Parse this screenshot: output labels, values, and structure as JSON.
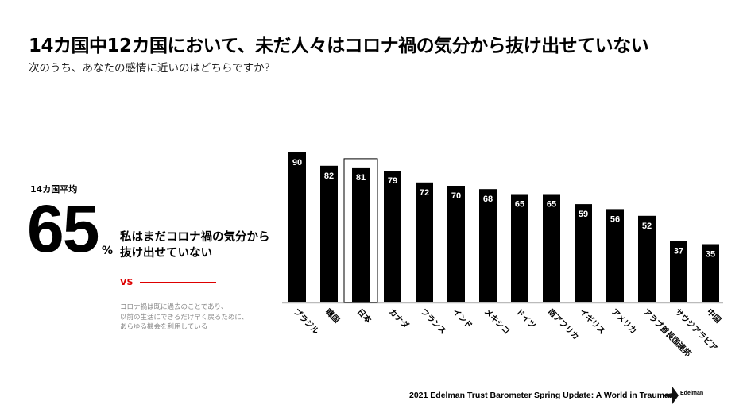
{
  "header": {
    "title": "14カ国中12カ国において、未だ人々はコロナ禍の気分から抜け出せていない",
    "subtitle": "次のうち、あなたの感情に近いのはどちらですか？"
  },
  "summary": {
    "label": "14カ国平均",
    "value": "65",
    "unit": "%",
    "statement_line1": "私はまだコロナ禍の気分から",
    "statement_line2": "抜け出せていない",
    "vs": "VS",
    "alt_line1": "コロナ禍は既に過去のことであり、",
    "alt_line2": "以前の生活にできるだけ早く戻るために、",
    "alt_line3": "あらゆる機会を利用している"
  },
  "chart_data": {
    "type": "bar",
    "categories": [
      "ブラジル",
      "韓国",
      "日本",
      "カナダ",
      "フランス",
      "インド",
      "メキシコ",
      "ドイツ",
      "南アフリカ",
      "イギリス",
      "アメリカ",
      "アラブ首長国連邦",
      "サウジアラビア",
      "中国"
    ],
    "values": [
      90,
      82,
      81,
      79,
      72,
      70,
      68,
      65,
      65,
      59,
      56,
      52,
      37,
      35
    ],
    "ylim": [
      0,
      100
    ],
    "highlight": "日本",
    "bar_color": "#000000",
    "label_color": "#ffffff",
    "grid": false
  },
  "footer": {
    "source": "2021 Edelman Trust Barometer Spring Update: A World in Trauma.",
    "logo": "Edelman"
  }
}
